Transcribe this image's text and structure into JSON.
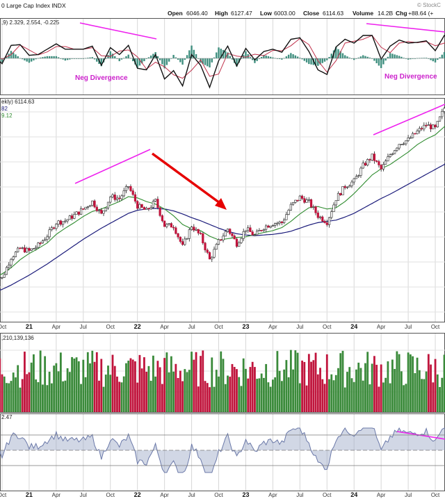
{
  "header": {
    "title": "0 Large Cap Index INDX",
    "open_label": "Open",
    "open": "6046.40",
    "high_label": "High",
    "high": "6127.47",
    "low_label": "Low",
    "low": "6003.00",
    "close_label": "Close",
    "close": "6114.63",
    "volume_label": "Volume",
    "volume": "14.2B",
    "chg_label": "Chg",
    "chg": "+88.64 (+",
    "watermark": "© StockC"
  },
  "macd_panel": {
    "legend": ",9) 2.329, 2.554, -0.225",
    "annotation_left": "Neg Divergence",
    "annotation_right": "Neg Divergence"
  },
  "price_panel": {
    "legend_main": "ekly) 6114.63",
    "legend_ma1": "82",
    "legend_ma2": "9.12"
  },
  "volume_panel": {
    "legend": ",210,139,136"
  },
  "rsi_panel": {
    "legend": "2.47"
  },
  "x_axis": {
    "labels": [
      "Oct",
      "21",
      "Apr",
      "Jul",
      "Oct",
      "22",
      "Apr",
      "Jul",
      "Oct",
      "23",
      "Apr",
      "Jul",
      "Oct",
      "24",
      "Apr",
      "Jul",
      "Oct"
    ]
  },
  "colors": {
    "up": "#3a8a3a",
    "down": "#c0143c",
    "ma_short": "#2e8b2e",
    "ma_long": "#1a1a7a",
    "divergence": "#ee22ee",
    "trend_arrow": "#e60000",
    "macd": "#111111",
    "signal": "#c0304a",
    "hist": "#3f8f7f",
    "rsi": "#6a78a8"
  },
  "chart_data": {
    "type": "line",
    "x": [
      "2020-09",
      "2020-10",
      "2020-11",
      "2020-12",
      "2021-01",
      "2021-02",
      "2021-03",
      "2021-04",
      "2021-05",
      "2021-06",
      "2021-07",
      "2021-08",
      "2021-09",
      "2021-10",
      "2021-11",
      "2021-12",
      "2022-01",
      "2022-02",
      "2022-03",
      "2022-04",
      "2022-05",
      "2022-06",
      "2022-07",
      "2022-08",
      "2022-09",
      "2022-10",
      "2022-11",
      "2022-12",
      "2023-01",
      "2023-02",
      "2023-03",
      "2023-04",
      "2023-05",
      "2023-06",
      "2023-07",
      "2023-08",
      "2023-09",
      "2023-10",
      "2023-11",
      "2023-12",
      "2024-01",
      "2024-02",
      "2024-03",
      "2024-04",
      "2024-05",
      "2024-06",
      "2024-07",
      "2024-08",
      "2024-09",
      "2024-10",
      "2024-11",
      "2024-12"
    ],
    "series": [
      {
        "values": [
          3350,
          3280,
          3620,
          3760,
          3720,
          3810,
          3970,
          4180,
          4210,
          4300,
          4400,
          4520,
          4310,
          4600,
          4570,
          4770,
          4450,
          4370,
          4530,
          4130,
          4130,
          3790,
          4130,
          3960,
          3580,
          3870,
          4080,
          3840,
          4080,
          3970,
          4110,
          4170,
          4180,
          4450,
          4590,
          4510,
          4290,
          4190,
          4570,
          4770,
          4850,
          5100,
          5250,
          5040,
          5280,
          5460,
          5520,
          5650,
          5760,
          5700,
          6030,
          6115
        ]
      },
      {
        "values": [
          3300,
          3350,
          3450,
          3580,
          3680,
          3760,
          3850,
          3990,
          4090,
          4180,
          4280,
          4360,
          4400,
          4460,
          4520,
          4600,
          4580,
          4520,
          4480,
          4400,
          4290,
          4150,
          4080,
          4050,
          3960,
          3900,
          3920,
          3940,
          3950,
          3990,
          4020,
          4050,
          4100,
          4200,
          4320,
          4420,
          4440,
          4400,
          4420,
          4520,
          4650,
          4800,
          4950,
          5050,
          5120,
          5220,
          5320,
          5440,
          5530,
          5600,
          5730,
          5850
        ]
      },
      {
        "values": [
          3050,
          3100,
          3170,
          3250,
          3330,
          3420,
          3510,
          3610,
          3710,
          3810,
          3910,
          4000,
          4090,
          4170,
          4250,
          4330,
          4380,
          4400,
          4410,
          4400,
          4370,
          4320,
          4260,
          4210,
          4150,
          4090,
          4040,
          4000,
          3980,
          3970,
          3980,
          3990,
          4010,
          4040,
          4090,
          4140,
          4180,
          4200,
          4220,
          4270,
          4330,
          4410,
          4490,
          4570,
          4640,
          4720,
          4800,
          4880,
          4960,
          5040,
          5120,
          5210
        ]
      }
    ],
    "xlabel": "",
    "ylabel": "",
    "grid": true
  }
}
